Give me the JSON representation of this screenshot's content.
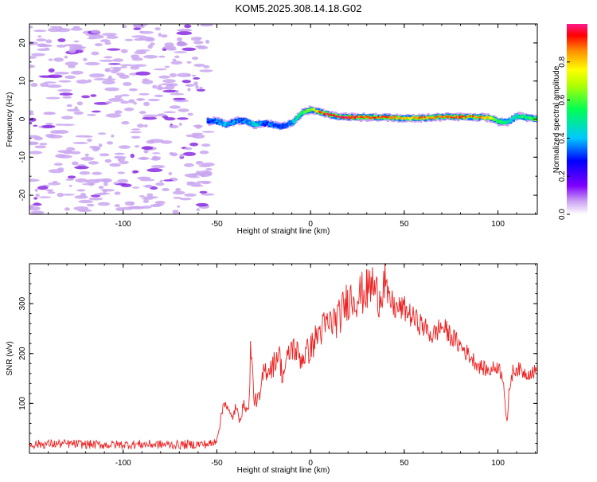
{
  "title": "KOM5.2025.308.14.18.G02",
  "chart_data": [
    {
      "type": "heatmap",
      "xlabel": "Height of straight line (km)",
      "ylabel": "Frequency (Hz)",
      "xlim": [
        -150,
        121
      ],
      "ylim": [
        -25,
        25
      ],
      "xticks": [
        -100,
        -50,
        0,
        50,
        100
      ],
      "yticks": [
        -20,
        -10,
        0,
        10,
        20
      ],
      "colorbar": {
        "label": "Normalized spectral amplitude",
        "range": [
          0.0,
          1.0
        ],
        "ticks": [
          "0.0",
          "0.2",
          "0.4",
          "0.6",
          "0.8"
        ],
        "colormap": "rainbow"
      },
      "noise_region_x": [
        -150,
        -54
      ],
      "signal_track": {
        "x": [
          -55,
          -50,
          -45,
          -40,
          -35,
          -30,
          -25,
          -20,
          -15,
          -10,
          -5,
          0,
          5,
          10,
          15,
          20,
          30,
          40,
          50,
          60,
          70,
          80,
          90,
          95,
          100,
          105,
          110,
          121
        ],
        "freq": [
          -0.5,
          -0.5,
          -1.5,
          -0.5,
          -0.5,
          -1.5,
          -1.0,
          -1.5,
          -2.0,
          -1.0,
          1.5,
          2.5,
          1.8,
          1.2,
          0.6,
          0.5,
          0.5,
          0.5,
          0.2,
          0.3,
          0.6,
          0.6,
          0.5,
          0.4,
          -0.6,
          -0.8,
          0.8,
          0.0
        ],
        "amplitude": [
          0.3,
          0.35,
          0.4,
          0.35,
          0.35,
          0.45,
          0.3,
          0.35,
          0.3,
          0.4,
          0.55,
          0.65,
          0.9,
          0.95,
          0.97,
          0.95,
          0.9,
          0.9,
          0.8,
          0.85,
          0.85,
          0.9,
          0.85,
          0.8,
          0.55,
          0.45,
          0.5,
          0.6
        ]
      }
    },
    {
      "type": "line",
      "xlabel": "Height of straight line (km)",
      "ylabel": "SNR (v/v)",
      "xlim": [
        -150,
        121
      ],
      "ylim": [
        0,
        380
      ],
      "xticks": [
        -100,
        -50,
        0,
        50,
        100
      ],
      "yticks": [
        100,
        200,
        300
      ],
      "color": "#ee2222",
      "series": [
        {
          "name": "SNR",
          "x": [
            -150,
            -130,
            -110,
            -90,
            -70,
            -60,
            -52,
            -50,
            -48,
            -46,
            -44,
            -42,
            -40,
            -38,
            -35,
            -33,
            -32,
            -30,
            -27,
            -25,
            -20,
            -17,
            -15,
            -10,
            -5,
            0,
            5,
            10,
            15,
            20,
            25,
            30,
            33,
            35,
            37,
            39,
            40,
            41,
            42,
            44,
            45,
            50,
            55,
            60,
            65,
            70,
            75,
            80,
            85,
            90,
            95,
            100,
            103,
            104,
            105,
            106,
            108,
            110,
            115,
            121
          ],
          "y": [
            18,
            19,
            17,
            18,
            17,
            18,
            19,
            30,
            65,
            110,
            85,
            70,
            90,
            70,
            100,
            80,
            215,
            105,
            110,
            165,
            175,
            205,
            155,
            215,
            190,
            210,
            245,
            260,
            270,
            310,
            315,
            325,
            340,
            320,
            315,
            345,
            350,
            310,
            305,
            300,
            290,
            290,
            270,
            255,
            235,
            255,
            235,
            215,
            195,
            175,
            165,
            175,
            150,
            90,
            55,
            130,
            165,
            170,
            160,
            165
          ]
        }
      ]
    }
  ]
}
